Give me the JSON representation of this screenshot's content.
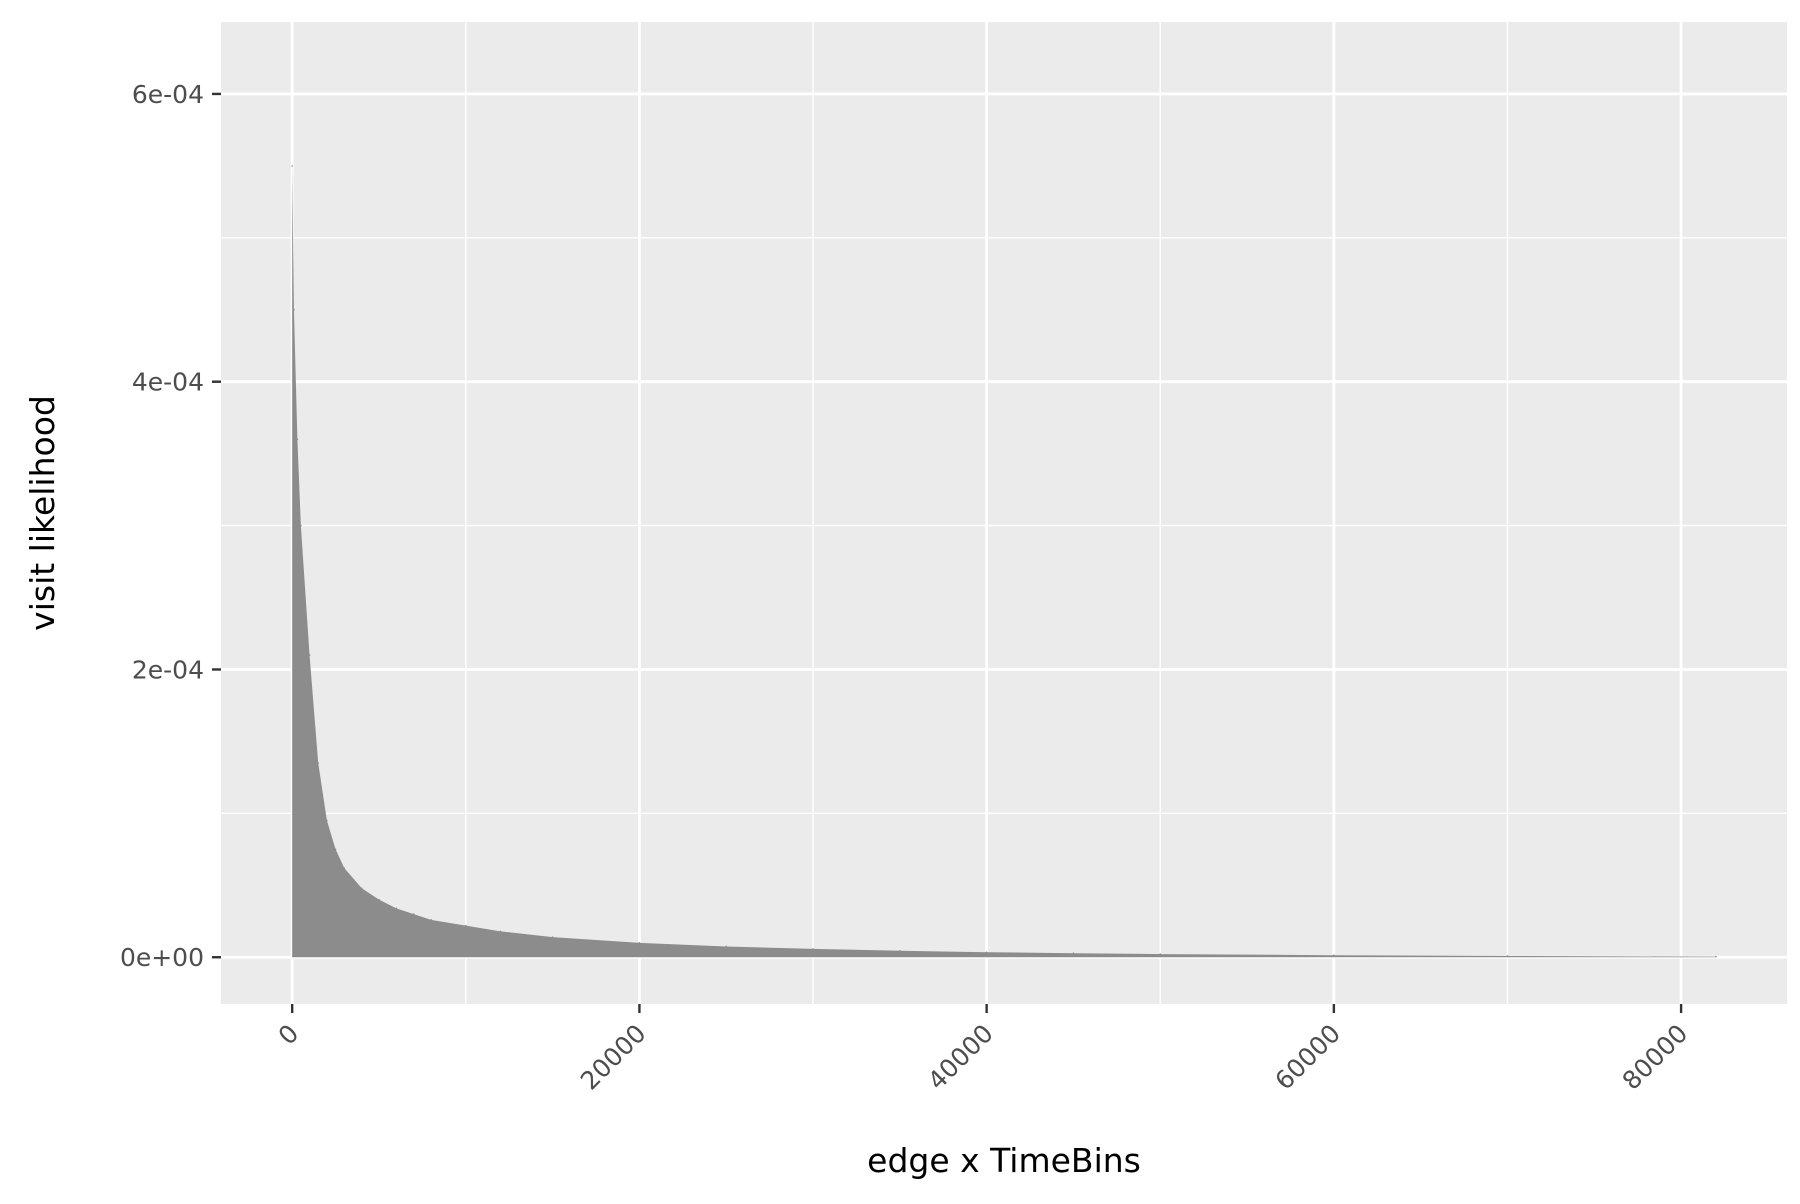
{
  "chart_data": {
    "type": "area",
    "title": "",
    "xlabel": "edge x TimeBins",
    "ylabel": "visit likelihood",
    "xlim": [
      -4100,
      86100
    ],
    "ylim": [
      -3.25e-05,
      0.00065
    ],
    "x_ticks": [
      0,
      20000,
      40000,
      60000,
      80000
    ],
    "x_tick_labels": [
      "0",
      "20000",
      "40000",
      "60000",
      "80000"
    ],
    "x_minor_ticks": [
      10000,
      30000,
      50000,
      70000
    ],
    "y_ticks": [
      0,
      0.0002,
      0.0004,
      0.0006
    ],
    "y_tick_labels": [
      "0e+00",
      "2e-04",
      "4e-04",
      "6e-04"
    ],
    "y_minor_ticks": [
      0.0001,
      0.0003,
      0.0005
    ],
    "x_tick_rotation_deg": -45,
    "grid": true,
    "legend": "none",
    "fill_color": "#8c8c8c",
    "panel_color": "#ebebeb",
    "grid_color": "#ffffff",
    "series": [
      {
        "x": [
          0,
          100,
          300,
          500,
          1000,
          1500,
          2000,
          2500,
          3000,
          4000,
          5000,
          6000,
          7000,
          8000,
          10000,
          12000,
          15000,
          20000,
          25000,
          30000,
          35000,
          40000,
          45000,
          50000,
          60000,
          70000,
          82000
        ],
        "values": [
          0.00055,
          0.00045,
          0.00036,
          0.0003,
          0.00021,
          0.000135,
          9.5e-05,
          7.5e-05,
          6.2e-05,
          4.8e-05,
          4e-05,
          3.4e-05,
          3e-05,
          2.6e-05,
          2.2e-05,
          1.8e-05,
          1.4e-05,
          1e-05,
          7.5e-06,
          5.8e-06,
          4.5e-06,
          3.5e-06,
          2.8e-06,
          2.2e-06,
          1.4e-06,
          9e-07,
          4e-07
        ]
      }
    ]
  }
}
